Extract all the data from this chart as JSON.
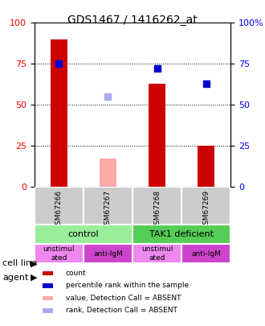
{
  "title": "GDS1467 / 1416262_at",
  "samples": [
    "GSM67266",
    "GSM67267",
    "GSM67268",
    "GSM67269"
  ],
  "bar_values": [
    90,
    17,
    63,
    25
  ],
  "bar_colors": [
    "#cc0000",
    "#ffaaaa",
    "#cc0000",
    "#cc0000"
  ],
  "rank_values": [
    75,
    55,
    72,
    63
  ],
  "rank_colors": [
    "#0000cc",
    "#aaaaee",
    "#0000cc",
    "#0000cc"
  ],
  "rank_absent": [
    false,
    true,
    false,
    false
  ],
  "bar_absent": [
    false,
    true,
    false,
    false
  ],
  "ylim_left": [
    0,
    100
  ],
  "ylim_right": [
    0,
    100
  ],
  "yticks": [
    0,
    25,
    50,
    75,
    100
  ],
  "cell_line_labels": [
    "control",
    "TAK1 deficient"
  ],
  "cell_line_spans": [
    [
      0,
      2
    ],
    [
      2,
      4
    ]
  ],
  "cell_line_colors": [
    "#99ee99",
    "#55cc55"
  ],
  "agent_labels": [
    "unstimul\nated",
    "anti-IgM",
    "unstimul\nated",
    "anti-IgM"
  ],
  "agent_bg_colors": [
    "#ee88ee",
    "#cc44cc",
    "#ee88ee",
    "#cc44cc"
  ],
  "legend_colors": [
    "#cc0000",
    "#0000cc",
    "#ffaaaa",
    "#aaaaee"
  ],
  "legend_labels": [
    "count",
    "percentile rank within the sample",
    "value, Detection Call = ABSENT",
    "rank, Detection Call = ABSENT"
  ]
}
